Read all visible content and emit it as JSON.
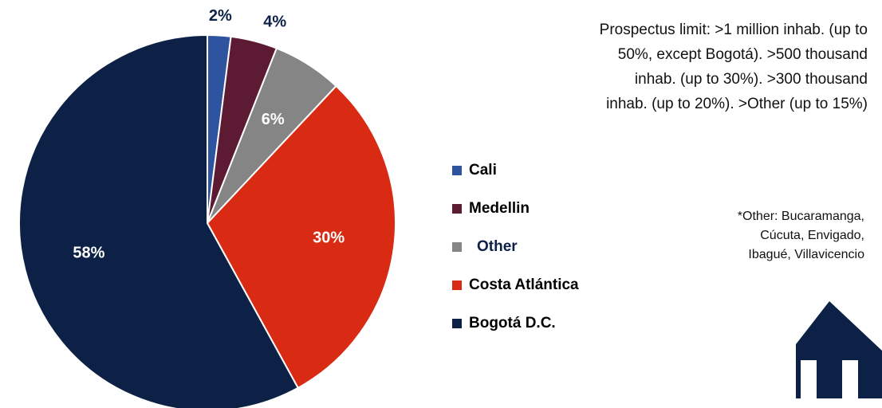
{
  "chart_data": {
    "type": "pie",
    "categories": [
      "Cali",
      "Medellin",
      "Other",
      "Costa Atlántica",
      "Bogotá D.C."
    ],
    "values": [
      2,
      4,
      6,
      30,
      58
    ],
    "value_labels": [
      "2%",
      "4%",
      "6%",
      "30%",
      "58%"
    ],
    "colors": [
      "#2e54a0",
      "#5c1a33",
      "#858585",
      "#d92a14",
      "#0c2145"
    ],
    "note": [
      "Prospectus limit: >1 million inhab. (up to",
      "50%, except Bogotá). >500 thousand",
      "inhab. (up to 30%).  >300 thousand",
      "inhab. (up to 20%).  >Other (up to 15%)"
    ],
    "footnote": [
      "*Other: Bucaramanga,",
      "Cúcuta, Envigado,",
      "Ibagué, Villavicencio"
    ]
  }
}
